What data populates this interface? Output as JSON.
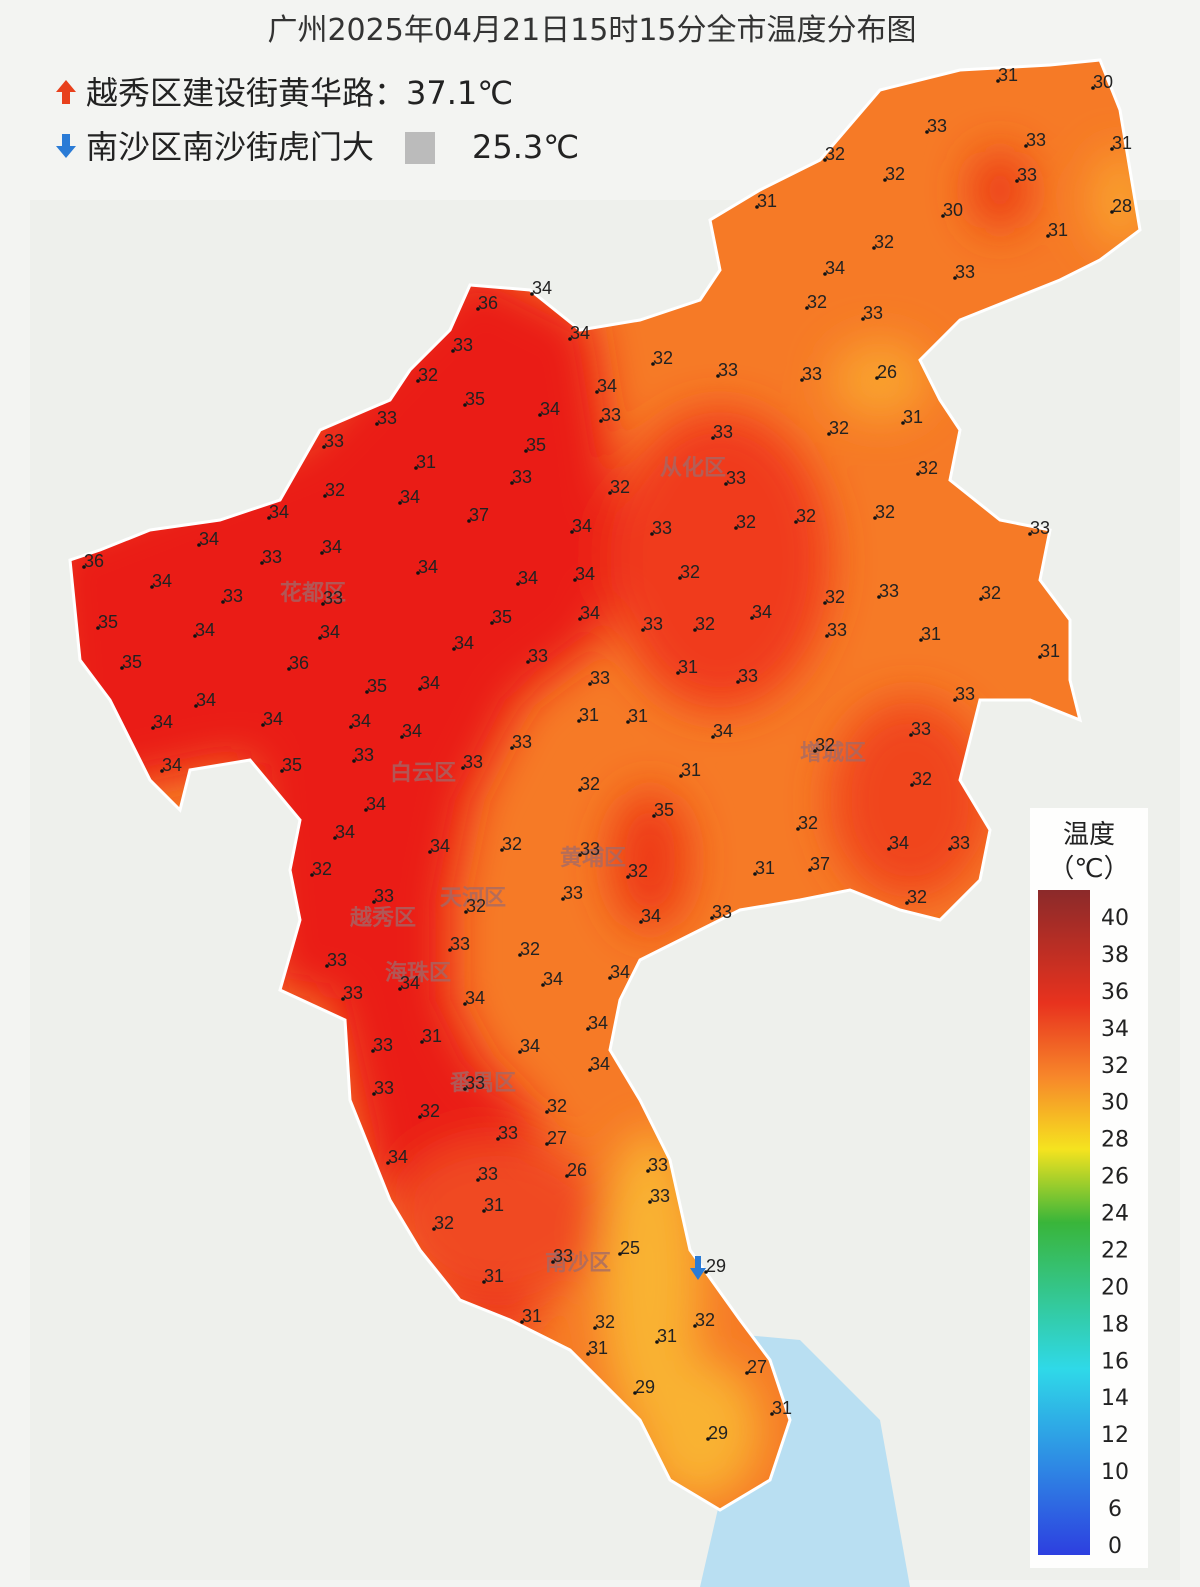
{
  "header": {
    "title": "广州2025年04月21日15时15分全市温度分布图",
    "max_station": "越秀区建设街黄华路：37.1℃",
    "min_station": "南沙区南沙街虎门大",
    "min_value": "25.3℃"
  },
  "districts": [
    "花都区",
    "白云区",
    "越秀区",
    "海珠区",
    "天河区",
    "黄埔区",
    "从化区",
    "增城区",
    "番禺区",
    "南沙区"
  ],
  "legend": {
    "title": "温度",
    "unit": "（℃）",
    "ticks": [
      40,
      38,
      36,
      34,
      32,
      30,
      28,
      26,
      24,
      22,
      20,
      18,
      16,
      14,
      12,
      10,
      6,
      0
    ]
  },
  "stations": [
    31,
    30,
    33,
    33,
    31,
    32,
    32,
    33,
    31,
    30,
    28,
    31,
    32,
    34,
    33,
    34,
    36,
    32,
    33,
    34,
    33,
    32,
    33,
    33,
    26,
    32,
    34,
    35,
    34,
    33,
    31,
    33,
    32,
    33,
    35,
    33,
    31,
    33,
    32,
    33,
    32,
    32,
    34,
    37,
    32,
    34,
    32,
    32,
    33,
    34,
    33,
    34,
    34,
    33,
    36,
    34,
    34,
    34,
    32,
    34,
    33,
    33,
    33,
    32,
    32,
    34,
    35,
    34,
    35,
    33,
    32,
    34,
    34,
    31,
    33,
    34,
    33,
    31,
    35,
    36,
    31,
    33,
    33,
    35,
    34,
    33,
    34,
    31,
    31,
    34,
    34,
    34,
    34,
    34,
    33,
    33,
    32,
    33,
    31,
    33,
    35,
    34,
    32,
    32,
    34,
    35,
    32,
    34,
    32,
    34,
    33,
    34,
    33,
    32,
    32,
    31,
    37,
    33,
    33,
    32,
    32,
    34,
    33,
    33,
    32,
    34,
    34,
    33,
    34,
    33,
    34,
    34,
    33,
    31,
    34,
    34,
    33,
    33,
    32,
    32,
    33,
    27,
    34,
    33,
    26,
    33,
    33,
    31,
    32,
    25,
    33,
    29,
    31,
    32,
    31,
    32,
    31,
    31,
    27,
    29,
    31,
    29
  ]
}
